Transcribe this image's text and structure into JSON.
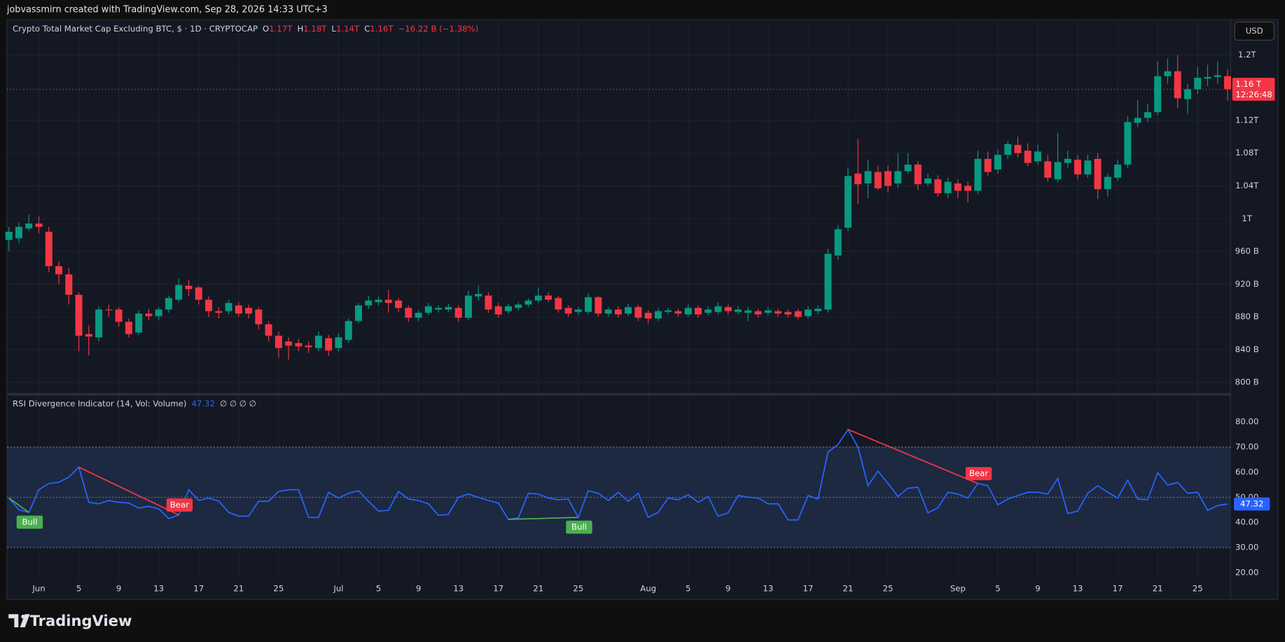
{
  "header": "jobvassmirn created with TradingView.com, Sep 28, 2026 14:33 UTC+3",
  "footer": "TradingView",
  "chart_data": [
    {
      "type": "candlestick",
      "title": "Crypto Total Market Cap Excluding BTC, $ · 1D · CRYPTOCAP",
      "legend_values": [
        {
          "key": "O",
          "value": "1.17T"
        },
        {
          "key": "H",
          "value": "1.18T"
        },
        {
          "key": "L",
          "value": "1.14T"
        },
        {
          "key": "C",
          "value": "1.16T"
        }
      ],
      "change": "−16.22 B (−1.38%)",
      "currency": "USD",
      "last_price_label": "1.16 T",
      "countdown": "12:26:48",
      "up_color": "#089981",
      "down_color": "#f23645",
      "grid": true,
      "ylim": [
        787,
        1243
      ],
      "xlim": [
        -0.2,
        122.3
      ],
      "yticks": [
        {
          "value": 800,
          "label": "800 B"
        },
        {
          "value": 840,
          "label": "840 B"
        },
        {
          "value": 880,
          "label": "880 B"
        },
        {
          "value": 920,
          "label": "920 B"
        },
        {
          "value": 960,
          "label": "960 B"
        },
        {
          "value": 1000,
          "label": "1T"
        },
        {
          "value": 1040,
          "label": "1.04T"
        },
        {
          "value": 1080,
          "label": "1.08T"
        },
        {
          "value": 1120,
          "label": "1.12T"
        },
        {
          "value": 1200,
          "label": "1.2T"
        }
      ],
      "ohlc": [
        [
          974,
          990,
          960,
          984
        ],
        [
          976,
          995,
          970,
          990
        ],
        [
          988,
          1005,
          985,
          994
        ],
        [
          994,
          1003,
          982,
          990
        ],
        [
          984,
          990,
          935,
          942
        ],
        [
          942,
          948,
          920,
          932
        ],
        [
          932,
          940,
          895,
          907
        ],
        [
          907,
          910,
          838,
          857
        ],
        [
          859,
          870,
          833,
          856
        ],
        [
          855,
          893,
          850,
          889
        ],
        [
          889,
          895,
          880,
          888
        ],
        [
          889,
          892,
          868,
          874
        ],
        [
          874,
          878,
          855,
          859
        ],
        [
          861,
          888,
          858,
          884
        ],
        [
          884,
          890,
          876,
          881
        ],
        [
          881,
          892,
          876,
          889
        ],
        [
          889,
          906,
          885,
          903
        ],
        [
          901,
          927,
          898,
          919
        ],
        [
          918,
          925,
          905,
          914
        ],
        [
          916,
          918,
          895,
          901
        ],
        [
          901,
          905,
          880,
          887
        ],
        [
          887,
          892,
          878,
          885
        ],
        [
          887,
          901,
          883,
          897
        ],
        [
          894,
          898,
          880,
          884
        ],
        [
          891,
          895,
          878,
          884
        ],
        [
          889,
          892,
          865,
          871
        ],
        [
          871,
          875,
          850,
          857
        ],
        [
          857,
          862,
          830,
          842
        ],
        [
          850,
          855,
          828,
          845
        ],
        [
          848,
          853,
          838,
          844
        ],
        [
          845,
          850,
          836,
          843
        ],
        [
          842,
          862,
          838,
          857
        ],
        [
          854,
          858,
          832,
          839
        ],
        [
          842,
          860,
          838,
          855
        ],
        [
          852,
          878,
          848,
          875
        ],
        [
          875,
          897,
          872,
          894
        ],
        [
          894,
          906,
          890,
          900
        ],
        [
          898,
          905,
          894,
          901
        ],
        [
          901,
          913,
          885,
          897
        ],
        [
          900,
          903,
          886,
          891
        ],
        [
          891,
          894,
          874,
          879
        ],
        [
          879,
          888,
          875,
          885
        ],
        [
          885,
          897,
          882,
          893
        ],
        [
          889,
          894,
          885,
          891
        ],
        [
          889,
          896,
          886,
          892
        ],
        [
          891,
          894,
          874,
          879
        ],
        [
          879,
          912,
          876,
          906
        ],
        [
          905,
          918,
          900,
          908
        ],
        [
          906,
          910,
          885,
          889
        ],
        [
          893,
          897,
          879,
          883
        ],
        [
          887,
          896,
          884,
          893
        ],
        [
          891,
          898,
          888,
          895
        ],
        [
          895,
          903,
          892,
          900
        ],
        [
          900,
          916,
          897,
          906
        ],
        [
          906,
          910,
          898,
          901
        ],
        [
          903,
          906,
          885,
          889
        ],
        [
          891,
          894,
          880,
          884
        ],
        [
          886,
          892,
          882,
          889
        ],
        [
          886,
          909,
          883,
          904
        ],
        [
          904,
          906,
          880,
          884
        ],
        [
          884,
          892,
          880,
          889
        ],
        [
          889,
          893,
          879,
          883
        ],
        [
          884,
          896,
          881,
          892
        ],
        [
          892,
          895,
          875,
          879
        ],
        [
          885,
          888,
          872,
          878
        ],
        [
          878,
          891,
          875,
          887
        ],
        [
          886,
          891,
          883,
          888
        ],
        [
          887,
          890,
          880,
          884
        ],
        [
          883,
          895,
          880,
          891
        ],
        [
          891,
          894,
          879,
          883
        ],
        [
          885,
          893,
          882,
          889
        ],
        [
          886,
          898,
          883,
          893
        ],
        [
          892,
          895,
          883,
          887
        ],
        [
          886,
          893,
          883,
          889
        ],
        [
          885,
          892,
          875,
          888
        ],
        [
          887,
          890,
          879,
          883
        ],
        [
          885,
          892,
          882,
          888
        ],
        [
          887,
          890,
          880,
          884
        ],
        [
          886,
          889,
          879,
          883
        ],
        [
          887,
          890,
          877,
          880
        ],
        [
          881,
          893,
          878,
          889
        ],
        [
          887,
          894,
          883,
          890
        ],
        [
          889,
          963,
          885,
          957
        ],
        [
          955,
          992,
          950,
          987
        ],
        [
          989,
          1062,
          985,
          1052
        ],
        [
          1055,
          1097,
          1018,
          1042
        ],
        [
          1043,
          1072,
          1025,
          1058
        ],
        [
          1057,
          1065,
          1035,
          1037
        ],
        [
          1058,
          1065,
          1032,
          1040
        ],
        [
          1043,
          1080,
          1038,
          1058
        ],
        [
          1058,
          1080,
          1055,
          1066
        ],
        [
          1066,
          1070,
          1035,
          1042
        ],
        [
          1043,
          1055,
          1040,
          1049
        ],
        [
          1048,
          1053,
          1027,
          1031
        ],
        [
          1031,
          1050,
          1025,
          1045
        ],
        [
          1043,
          1048,
          1025,
          1034
        ],
        [
          1040,
          1045,
          1020,
          1034
        ],
        [
          1034,
          1083,
          1030,
          1073
        ],
        [
          1073,
          1082,
          1052,
          1057
        ],
        [
          1060,
          1085,
          1055,
          1078
        ],
        [
          1078,
          1095,
          1073,
          1091
        ],
        [
          1090,
          1100,
          1075,
          1080
        ],
        [
          1083,
          1092,
          1064,
          1068
        ],
        [
          1070,
          1090,
          1066,
          1082
        ],
        [
          1070,
          1078,
          1045,
          1050
        ],
        [
          1048,
          1105,
          1044,
          1069
        ],
        [
          1068,
          1083,
          1062,
          1073
        ],
        [
          1072,
          1078,
          1048,
          1054
        ],
        [
          1054,
          1078,
          1050,
          1071
        ],
        [
          1073,
          1080,
          1024,
          1036
        ],
        [
          1036,
          1055,
          1027,
          1051
        ],
        [
          1050,
          1072,
          1046,
          1066
        ],
        [
          1066,
          1125,
          1062,
          1118
        ],
        [
          1117,
          1145,
          1112,
          1123
        ],
        [
          1123,
          1140,
          1118,
          1130
        ],
        [
          1130,
          1192,
          1126,
          1174
        ],
        [
          1174,
          1195,
          1165,
          1180
        ],
        [
          1180,
          1200,
          1135,
          1147
        ],
        [
          1146,
          1165,
          1128,
          1158
        ],
        [
          1158,
          1185,
          1152,
          1172
        ],
        [
          1171,
          1188,
          1162,
          1173
        ],
        [
          1173,
          1192,
          1165,
          1175
        ],
        [
          1174,
          1182,
          1144,
          1158
        ]
      ]
    },
    {
      "type": "line",
      "title": "RSI Divergence Indicator (14, Vol: Volume)",
      "value_label": "47.32",
      "inputs": "∅ ∅ ∅ ∅",
      "ylim": [
        10,
        90.5
      ],
      "xlim": [
        -0.2,
        122.3
      ],
      "band": [
        30,
        70
      ],
      "midline": 50,
      "band_color": "#1c2940",
      "yticks": [
        {
          "value": 20,
          "label": "20.00"
        },
        {
          "value": 30,
          "label": "30.00"
        },
        {
          "value": 40,
          "label": "40.00"
        },
        {
          "value": 50,
          "label": "50.00"
        },
        {
          "value": 60,
          "label": "60.00"
        },
        {
          "value": 70,
          "label": "70.00"
        },
        {
          "value": 80,
          "label": "80.00"
        }
      ],
      "xticks": [
        {
          "value": 3,
          "label": "Jun"
        },
        {
          "value": 7,
          "label": "5"
        },
        {
          "value": 11,
          "label": "9"
        },
        {
          "value": 15,
          "label": "13"
        },
        {
          "value": 19,
          "label": "17"
        },
        {
          "value": 23,
          "label": "21"
        },
        {
          "value": 27,
          "label": "25"
        },
        {
          "value": 33,
          "label": "Jul"
        },
        {
          "value": 37,
          "label": "5"
        },
        {
          "value": 41,
          "label": "9"
        },
        {
          "value": 45,
          "label": "13"
        },
        {
          "value": 49,
          "label": "17"
        },
        {
          "value": 53,
          "label": "21"
        },
        {
          "value": 57,
          "label": "25"
        },
        {
          "value": 64,
          "label": "Aug"
        },
        {
          "value": 68,
          "label": "5"
        },
        {
          "value": 72,
          "label": "9"
        },
        {
          "value": 76,
          "label": "13"
        },
        {
          "value": 80,
          "label": "17"
        },
        {
          "value": 84,
          "label": "21"
        },
        {
          "value": 88,
          "label": "25"
        },
        {
          "value": 95,
          "label": "Sep"
        },
        {
          "value": 99,
          "label": "5"
        },
        {
          "value": 103,
          "label": "9"
        },
        {
          "value": 107,
          "label": "13"
        },
        {
          "value": 111,
          "label": "17"
        },
        {
          "value": 115,
          "label": "21"
        },
        {
          "value": 119,
          "label": "25"
        }
      ],
      "series": [
        {
          "color": "#2962ff",
          "values": [
            49.7,
            45,
            44,
            53,
            55.5,
            56,
            58,
            62,
            48,
            47.4,
            48.7,
            48,
            47.7,
            45.7,
            46.4,
            45.4,
            41.5,
            43,
            53,
            48.7,
            49.7,
            48.5,
            44,
            42.5,
            42.5,
            48.4,
            48.4,
            52.3,
            53,
            53,
            42,
            42,
            52,
            49.7,
            51.6,
            52.6,
            48.4,
            44.5,
            44.8,
            52.3,
            49.3,
            48.7,
            47.4,
            42.8,
            43.2,
            50,
            51.3,
            50,
            48.7,
            47.7,
            41.2,
            41.8,
            51.6,
            51.3,
            49.7,
            49,
            49.3,
            42,
            52.6,
            51.6,
            48.7,
            52,
            48.4,
            51.6,
            42,
            44,
            49.7,
            49,
            51,
            48,
            50.3,
            42.5,
            43.8,
            50.7,
            50,
            49.7,
            47.4,
            47.4,
            41,
            41,
            50.7,
            49.3,
            68,
            71,
            77,
            70,
            54.6,
            60.4,
            55.5,
            50.3,
            53.6,
            54,
            43.8,
            45.8,
            52,
            51.3,
            49.7,
            55.5,
            54.6,
            47,
            49.3,
            50.7,
            52,
            52,
            51.3,
            57.5,
            43.5,
            44.5,
            51.6,
            54.6,
            52,
            49.7,
            56.8,
            49.3,
            49,
            59.8,
            54.9,
            55.9,
            51.6,
            52,
            44.8,
            46.7,
            47.32
          ]
        }
      ],
      "divergences": [
        {
          "label": "Bull",
          "color": "#4caf50",
          "from": 0,
          "to": 2
        },
        {
          "label": "Bear",
          "color": "#f23645",
          "from": 7,
          "to": 17
        },
        {
          "label": "Bull",
          "color": "#4caf50",
          "from": 50,
          "to": 57
        },
        {
          "label": "Bear",
          "color": "#f23645",
          "from": 84,
          "to": 97
        }
      ]
    }
  ]
}
